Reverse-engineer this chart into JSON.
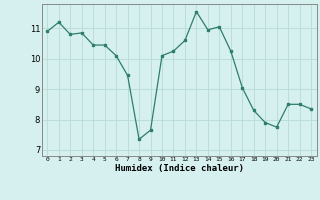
{
  "x": [
    0,
    1,
    2,
    3,
    4,
    5,
    6,
    7,
    8,
    9,
    10,
    11,
    12,
    13,
    14,
    15,
    16,
    17,
    18,
    19,
    20,
    21,
    22,
    23
  ],
  "y": [
    10.9,
    11.2,
    10.8,
    10.85,
    10.45,
    10.45,
    10.1,
    9.45,
    7.35,
    7.65,
    10.1,
    10.25,
    10.6,
    11.55,
    10.95,
    11.05,
    10.25,
    9.05,
    8.3,
    7.9,
    7.75,
    8.5,
    8.5,
    8.35
  ],
  "xlabel": "Humidex (Indice chaleur)",
  "ylim": [
    6.8,
    11.8
  ],
  "xlim": [
    -0.5,
    23.5
  ],
  "yticks": [
    7,
    8,
    9,
    10,
    11
  ],
  "xticks": [
    0,
    1,
    2,
    3,
    4,
    5,
    6,
    7,
    8,
    9,
    10,
    11,
    12,
    13,
    14,
    15,
    16,
    17,
    18,
    19,
    20,
    21,
    22,
    23
  ],
  "line_color": "#2e7d6e",
  "marker_color": "#2e7d6e",
  "bg_color": "#d6f0ef",
  "grid_color": "#b8dbd8",
  "axis_color": "#888888"
}
